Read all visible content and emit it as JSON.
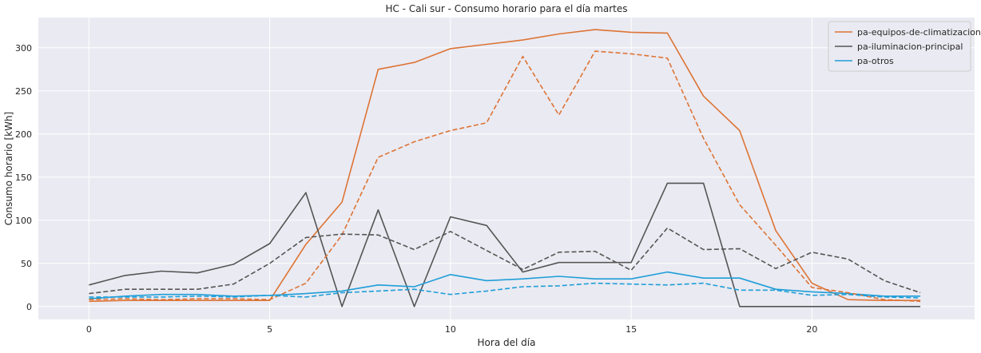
{
  "chart_data": {
    "type": "line",
    "title": "HC - Cali sur - Consumo horario para el día martes",
    "xlabel": "Hora del día",
    "ylabel": "Consumo horario [kWh]",
    "xlim": [
      -1.4,
      24.5
    ],
    "ylim": [
      -15,
      335
    ],
    "xticks": [
      0,
      5,
      10,
      15,
      20
    ],
    "yticks": [
      0,
      50,
      100,
      150,
      200,
      250,
      300
    ],
    "grid": true,
    "legend_position": "top-right",
    "x": [
      0,
      1,
      2,
      3,
      4,
      5,
      6,
      7,
      8,
      9,
      10,
      11,
      12,
      13,
      14,
      15,
      16,
      17,
      18,
      19,
      20,
      21,
      22,
      23
    ],
    "series": [
      {
        "name": "pa-equipos-de-climatizacion",
        "color": "#dd7435",
        "style": "solid",
        "values": [
          6,
          7,
          7,
          7,
          7,
          7,
          72,
          121,
          275,
          283,
          299,
          304,
          309,
          316,
          321,
          318,
          317,
          244,
          204,
          88,
          27,
          8,
          7,
          7
        ]
      },
      {
        "name": "pa-iluminacion-principal",
        "color": "#555555",
        "style": "solid",
        "values": [
          25,
          36,
          41,
          39,
          49,
          73,
          132,
          0,
          112,
          0,
          104,
          94,
          40,
          51,
          51,
          51,
          143,
          143,
          0,
          0,
          0,
          0,
          0,
          0
        ]
      },
      {
        "name": "pa-otros",
        "color": "#1f9ed8",
        "style": "solid",
        "values": [
          9,
          12,
          14,
          14,
          12,
          13,
          15,
          18,
          25,
          23,
          37,
          30,
          32,
          35,
          32,
          32,
          40,
          33,
          33,
          20,
          17,
          15,
          12,
          12
        ]
      },
      {
        "color": "#dd7435",
        "style": "dashed",
        "values": [
          8,
          9,
          8,
          9,
          9,
          8,
          27,
          83,
          173,
          191,
          204,
          213,
          290,
          222,
          296,
          293,
          288,
          195,
          118,
          71,
          22,
          16,
          8,
          6
        ]
      },
      {
        "color": "#555555",
        "style": "dashed",
        "values": [
          15,
          20,
          20,
          20,
          26,
          50,
          80,
          84,
          83,
          66,
          87,
          65,
          43,
          63,
          64,
          42,
          91,
          66,
          67,
          44,
          63,
          55,
          30,
          16
        ]
      },
      {
        "color": "#1f9ed8",
        "style": "dashed",
        "values": [
          11,
          11,
          11,
          12,
          11,
          13,
          11,
          16,
          18,
          20,
          14,
          18,
          23,
          24,
          27,
          26,
          25,
          27,
          19,
          19,
          13,
          14,
          11,
          10
        ]
      }
    ]
  }
}
